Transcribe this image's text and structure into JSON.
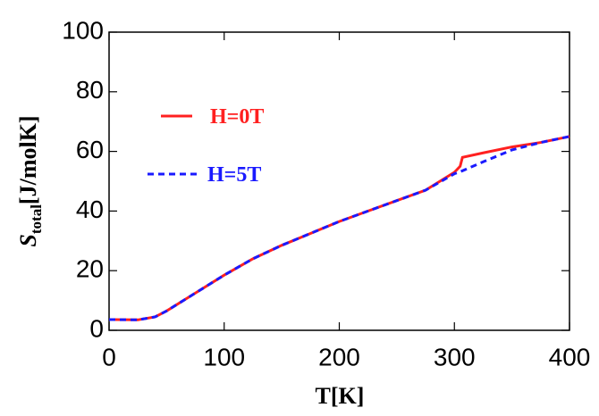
{
  "chart_data": {
    "type": "line",
    "xlabel": "T[K]",
    "ylabel": {
      "symbol": "S",
      "subscript": "total",
      "unit": "[J/molK]"
    },
    "x": [
      0,
      25,
      40,
      50,
      75,
      100,
      125,
      150,
      175,
      200,
      225,
      250,
      275,
      300,
      305,
      307,
      325,
      350,
      375,
      400
    ],
    "series": [
      {
        "name": "H=0T",
        "color": "#ff2020",
        "dash": false,
        "values": [
          3.6,
          3.5,
          4.5,
          6.5,
          12.5,
          18.5,
          24,
          28.5,
          32.5,
          36.5,
          40,
          43.5,
          47,
          53,
          55,
          58,
          59.5,
          61.5,
          63,
          65
        ]
      },
      {
        "name": "H=5T",
        "color": "#1a1aff",
        "dash": true,
        "values": [
          3.6,
          3.5,
          4.5,
          6.5,
          12.5,
          18.5,
          24,
          28.5,
          32.5,
          36.5,
          40,
          43.5,
          47,
          52.5,
          53.2,
          53.5,
          56.5,
          60.5,
          63,
          65
        ]
      }
    ],
    "xlim": [
      0,
      400
    ],
    "xticks": [
      0,
      100,
      200,
      300,
      400
    ],
    "ylim": [
      0,
      100
    ],
    "yticks": [
      0,
      20,
      40,
      60,
      80,
      100
    ]
  }
}
